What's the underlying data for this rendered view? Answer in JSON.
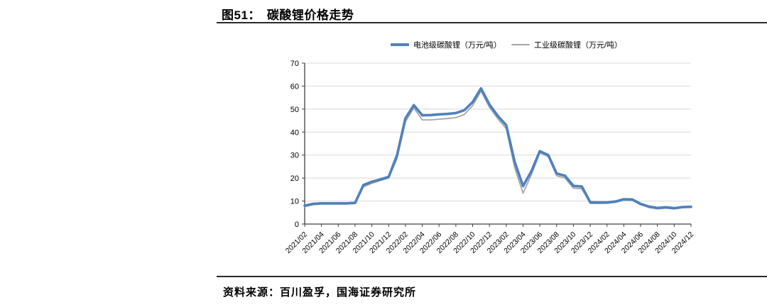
{
  "figure": {
    "title_prefix": "图51：",
    "title": "碳酸锂价格走势",
    "source_label": "资料来源：",
    "source_text": "百川盈孚，国海证券研究所"
  },
  "chart_data": {
    "type": "line",
    "title": "碳酸锂价格走势",
    "xlabel": "",
    "ylabel": "",
    "unit": "万元/吨",
    "ylim": [
      0,
      70
    ],
    "yticks": [
      0,
      10,
      20,
      30,
      40,
      50,
      60,
      70
    ],
    "xtick_every": 2,
    "grid": "horizontal",
    "legend_position": "top-center",
    "colors": {
      "axis": "#404040",
      "grid": "#d9d9d9",
      "tick_text": "#000000"
    },
    "categories": [
      "2021/02",
      "2021/03",
      "2021/04",
      "2021/05",
      "2021/06",
      "2021/07",
      "2021/08",
      "2021/09",
      "2021/10",
      "2021/11",
      "2021/12",
      "2022/01",
      "2022/02",
      "2022/03",
      "2022/04",
      "2022/05",
      "2022/06",
      "2022/07",
      "2022/08",
      "2022/09",
      "2022/10",
      "2022/11",
      "2022/12",
      "2023/01",
      "2023/02",
      "2023/03",
      "2023/04",
      "2023/05",
      "2023/06",
      "2023/07",
      "2023/08",
      "2023/09",
      "2023/10",
      "2023/11",
      "2023/12",
      "2024/01",
      "2024/02",
      "2024/03",
      "2024/04",
      "2024/05",
      "2024/06",
      "2024/07",
      "2024/08",
      "2024/09",
      "2024/10",
      "2024/11",
      "2024/12"
    ],
    "series": [
      {
        "name": "电池级碳酸锂（万元/吨）",
        "color": "#4F81BD",
        "stroke_width": 3.6,
        "values": [
          8.0,
          8.8,
          9.0,
          9.0,
          9.0,
          9.0,
          9.2,
          17.0,
          18.4,
          19.4,
          20.5,
          30.0,
          46.0,
          51.7,
          47.3,
          47.4,
          47.7,
          47.9,
          48.3,
          49.5,
          53.0,
          59.0,
          52.0,
          47.0,
          43.0,
          27.0,
          16.5,
          23.0,
          31.7,
          30.0,
          22.0,
          21.0,
          16.6,
          16.3,
          9.5,
          9.4,
          9.4,
          9.8,
          10.8,
          10.7,
          8.8,
          7.6,
          7.0,
          7.3,
          6.9,
          7.4,
          7.5
        ]
      },
      {
        "name": "工业级碳酸锂（万元/吨）",
        "color": "#A6A6A6",
        "stroke_width": 1.8,
        "values": [
          7.6,
          8.4,
          8.7,
          8.7,
          8.7,
          8.7,
          8.9,
          16.2,
          17.7,
          18.9,
          20.0,
          28.5,
          44.5,
          50.5,
          45.3,
          45.3,
          45.6,
          45.9,
          46.3,
          47.6,
          51.5,
          57.8,
          50.8,
          45.8,
          41.5,
          24.5,
          13.4,
          21.5,
          31.0,
          29.3,
          21.0,
          20.0,
          15.6,
          15.3,
          8.9,
          8.9,
          9.0,
          9.4,
          10.4,
          10.3,
          8.4,
          7.2,
          6.6,
          6.9,
          6.5,
          7.1,
          7.3
        ]
      }
    ]
  }
}
